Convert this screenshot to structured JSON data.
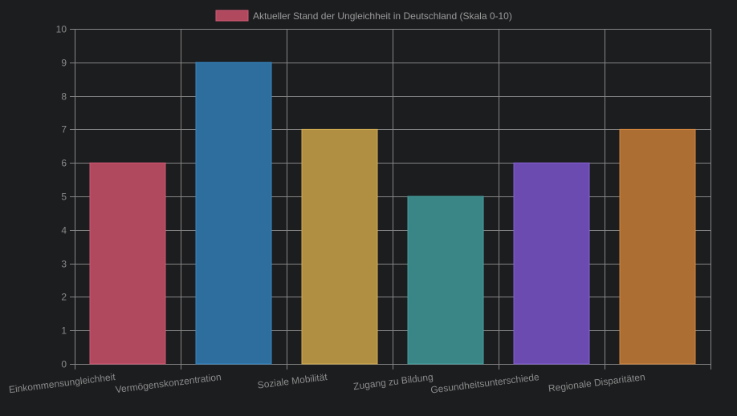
{
  "chart_data": {
    "type": "bar",
    "title": "",
    "xlabel": "",
    "ylabel": "",
    "ylim": [
      0,
      10
    ],
    "yticks": [
      "0",
      "1",
      "2",
      "3",
      "4",
      "5",
      "6",
      "7",
      "8",
      "9",
      "10"
    ],
    "grid": true,
    "legend_position": "top",
    "categories": [
      "Einkommensungleichheit",
      "Vermögenskonzentration",
      "Soziale Mobilität",
      "Zugang zu Bildung",
      "Gesundheitsunterschiede",
      "Regionale Disparitäten"
    ],
    "series": [
      {
        "name": "Aktueller Stand der Ungleichheit in Deutschland (Skala 0-10)",
        "values": [
          6,
          9,
          7,
          5,
          6,
          7
        ],
        "colors": [
          "#b0485e",
          "#2d6e9f",
          "#b08f42",
          "#3a8585",
          "#6c4bb0",
          "#ad6e34"
        ],
        "border_colors": [
          "#d05a74",
          "#3788c4",
          "#d4ad52",
          "#47a3a3",
          "#8560d4",
          "#d4883f"
        ]
      }
    ]
  },
  "colors": {
    "background": "#1c1d1f",
    "grid": "#858585",
    "text": "#8a8a8a"
  }
}
